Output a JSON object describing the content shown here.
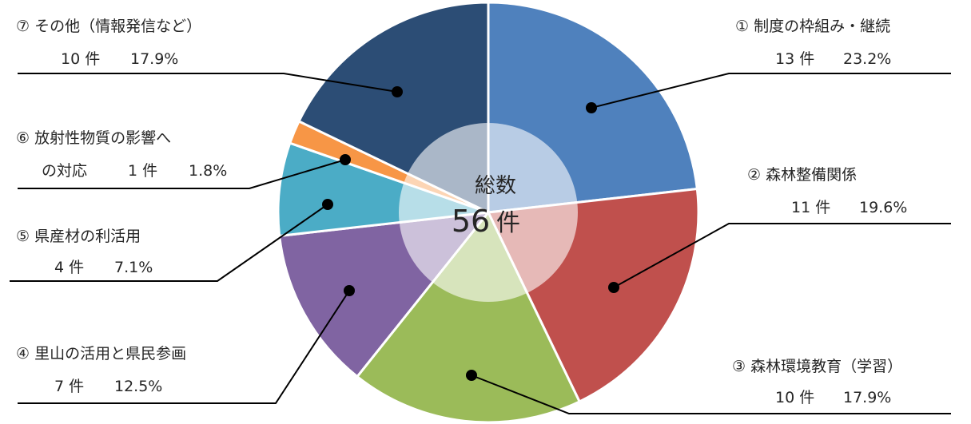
{
  "chart_data": {
    "type": "pie",
    "center": {
      "title": "総数",
      "count": "56",
      "unit": "件"
    },
    "slices": [
      {
        "name": "① 制度の枠組み・継続",
        "count_label": "13 件",
        "percent_label": "23.2%",
        "value": 13,
        "color": "#4f81bd"
      },
      {
        "name": "② 森林整備関係",
        "count_label": "11 件",
        "percent_label": "19.6%",
        "value": 11,
        "color": "#c0504d"
      },
      {
        "name": "③ 森林環境教育（学習）",
        "count_label": "10 件",
        "percent_label": "17.9%",
        "value": 10,
        "color": "#9bbb59"
      },
      {
        "name": "④ 里山の活用と県民参画",
        "count_label": "7 件",
        "percent_label": "12.5%",
        "value": 7,
        "color": "#8064a2"
      },
      {
        "name": "⑤ 県産材の利活用",
        "count_label": "4 件",
        "percent_label": "7.1%",
        "value": 4,
        "color": "#4bacc6"
      },
      {
        "name_lines": [
          "⑥ 放射性物質の影響へ",
          "の対応"
        ],
        "count_label": "1 件",
        "percent_label": "1.8%",
        "value": 1,
        "color": "#f79646"
      },
      {
        "name": "⑦ その他（情報発信など）",
        "count_label": "10 件",
        "percent_label": "17.9%",
        "value": 10,
        "color": "#2c4d75"
      }
    ]
  }
}
